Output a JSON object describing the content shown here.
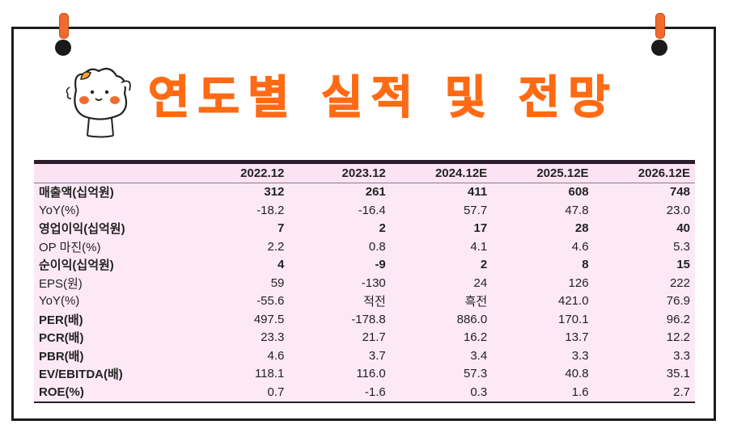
{
  "title": "연도별 실적 및 전망",
  "colors": {
    "title": "#ff6a14",
    "table_bg": "#fde9f6",
    "pin": "#f26a2e"
  },
  "table": {
    "headers": [
      "",
      "2022.12",
      "2023.12",
      "2024.12E",
      "2025.12E",
      "2026.12E"
    ],
    "rows": [
      {
        "label": "매출액(십억원)",
        "bold": true,
        "values": [
          "312",
          "261",
          "411",
          "608",
          "748"
        ]
      },
      {
        "label": "YoY(%)",
        "bold": false,
        "values": [
          "-18.2",
          "-16.4",
          "57.7",
          "47.8",
          "23.0"
        ]
      },
      {
        "label": "영업이익(십억원)",
        "bold": true,
        "values": [
          "7",
          "2",
          "17",
          "28",
          "40"
        ]
      },
      {
        "label": "OP 마진(%)",
        "bold": false,
        "values": [
          "2.2",
          "0.8",
          "4.1",
          "4.6",
          "5.3"
        ]
      },
      {
        "label": "순이익(십억원)",
        "bold": true,
        "values": [
          "4",
          "-9",
          "2",
          "8",
          "15"
        ]
      },
      {
        "label": "EPS(원)",
        "bold": false,
        "values": [
          "59",
          "-130",
          "24",
          "126",
          "222"
        ]
      },
      {
        "label": "YoY(%)",
        "bold": false,
        "values": [
          "-55.6",
          "적전",
          "흑전",
          "421.0",
          "76.9"
        ]
      },
      {
        "label": "PER(배)",
        "bold": false,
        "label_bold": true,
        "values": [
          "497.5",
          "-178.8",
          "886.0",
          "170.1",
          "96.2"
        ]
      },
      {
        "label": "PCR(배)",
        "bold": false,
        "label_bold": true,
        "values": [
          "23.3",
          "21.7",
          "16.2",
          "13.7",
          "12.2"
        ]
      },
      {
        "label": "PBR(배)",
        "bold": false,
        "label_bold": true,
        "values": [
          "4.6",
          "3.7",
          "3.4",
          "3.3",
          "3.3"
        ]
      },
      {
        "label": "EV/EBITDA(배)",
        "bold": false,
        "label_bold": true,
        "values": [
          "118.1",
          "116.0",
          "57.3",
          "40.8",
          "35.1"
        ]
      },
      {
        "label": "ROE(%)",
        "bold": false,
        "label_bold": true,
        "values": [
          "0.7",
          "-1.6",
          "0.3",
          "1.6",
          "2.7"
        ]
      }
    ]
  }
}
